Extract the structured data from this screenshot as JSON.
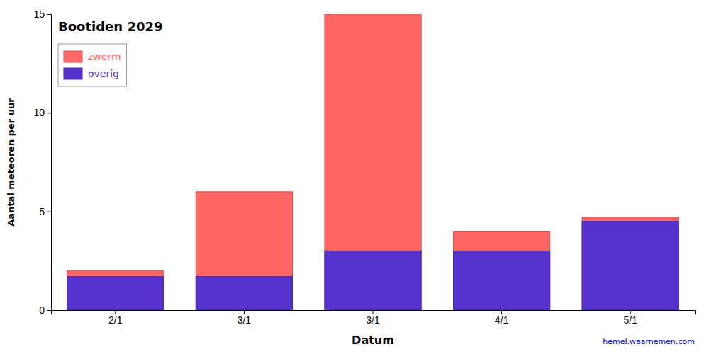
{
  "chart_data": {
    "type": "bar",
    "title": "Bootiden 2029",
    "categories": [
      "2/1",
      "3/1",
      "3/1",
      "4/1",
      "5/1"
    ],
    "series": [
      {
        "name": "zwerm",
        "color": "#ff6666",
        "values": [
          2.0,
          6.0,
          15.0,
          4.0,
          4.7
        ]
      },
      {
        "name": "overig",
        "color": "#5533cc",
        "values": [
          1.7,
          1.7,
          3.0,
          3.0,
          4.5
        ]
      }
    ],
    "xlabel": "Datum",
    "ylabel": "Aantal meteoren per uur",
    "ylim": [
      0,
      15
    ],
    "yticks": [
      0,
      5,
      10,
      15
    ],
    "grid": false,
    "legend": "upper left",
    "annotations": [
      {
        "text": "hemel.waarnemen.com",
        "color": "#0000cc"
      }
    ]
  }
}
